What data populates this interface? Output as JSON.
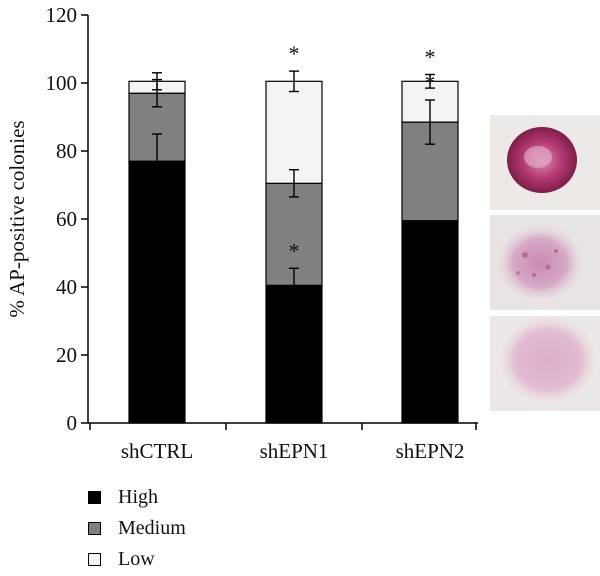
{
  "chart_data": {
    "type": "bar",
    "stacked": true,
    "categories": [
      "shCTRL",
      "shEPN1",
      "shEPN2"
    ],
    "series": [
      {
        "name": "High",
        "values": [
          77,
          40.5,
          59.5
        ],
        "errors": [
          8,
          5,
          null
        ],
        "color": "#000000"
      },
      {
        "name": "Medium",
        "values": [
          20,
          30,
          29
        ],
        "errors": [
          4,
          4,
          6.5
        ],
        "color": "#808080"
      },
      {
        "name": "Low",
        "values": [
          3.5,
          30,
          12
        ],
        "errors": [
          2.5,
          3,
          2
        ],
        "color": "#f4f4f4"
      }
    ],
    "significance": [
      {
        "category": "shEPN1",
        "segment": "High",
        "label": "*"
      },
      {
        "category": "shEPN1",
        "segment": "Low",
        "label": "*"
      },
      {
        "category": "shEPN2",
        "segment": "Medium",
        "label": "*"
      },
      {
        "category": "shEPN2",
        "segment": "Low",
        "label": "*"
      }
    ],
    "ylabel": "% AP-positive colonies",
    "xlabel": "",
    "ylim": [
      0,
      120
    ],
    "yticks": [
      0,
      20,
      40,
      60,
      80,
      100,
      120
    ],
    "grid": false,
    "legend_position": "bottom-left"
  },
  "legend": {
    "high_label": "High",
    "medium_label": "Medium",
    "low_label": "Low"
  },
  "colors": {
    "high": "#000000",
    "medium": "#808080",
    "low": "#f4f4f4"
  },
  "micrographs": [
    {
      "name": "High colony",
      "stain": "dense magenta"
    },
    {
      "name": "Medium colony",
      "stain": "speckled pink"
    },
    {
      "name": "Low colony",
      "stain": "faint pink"
    }
  ]
}
